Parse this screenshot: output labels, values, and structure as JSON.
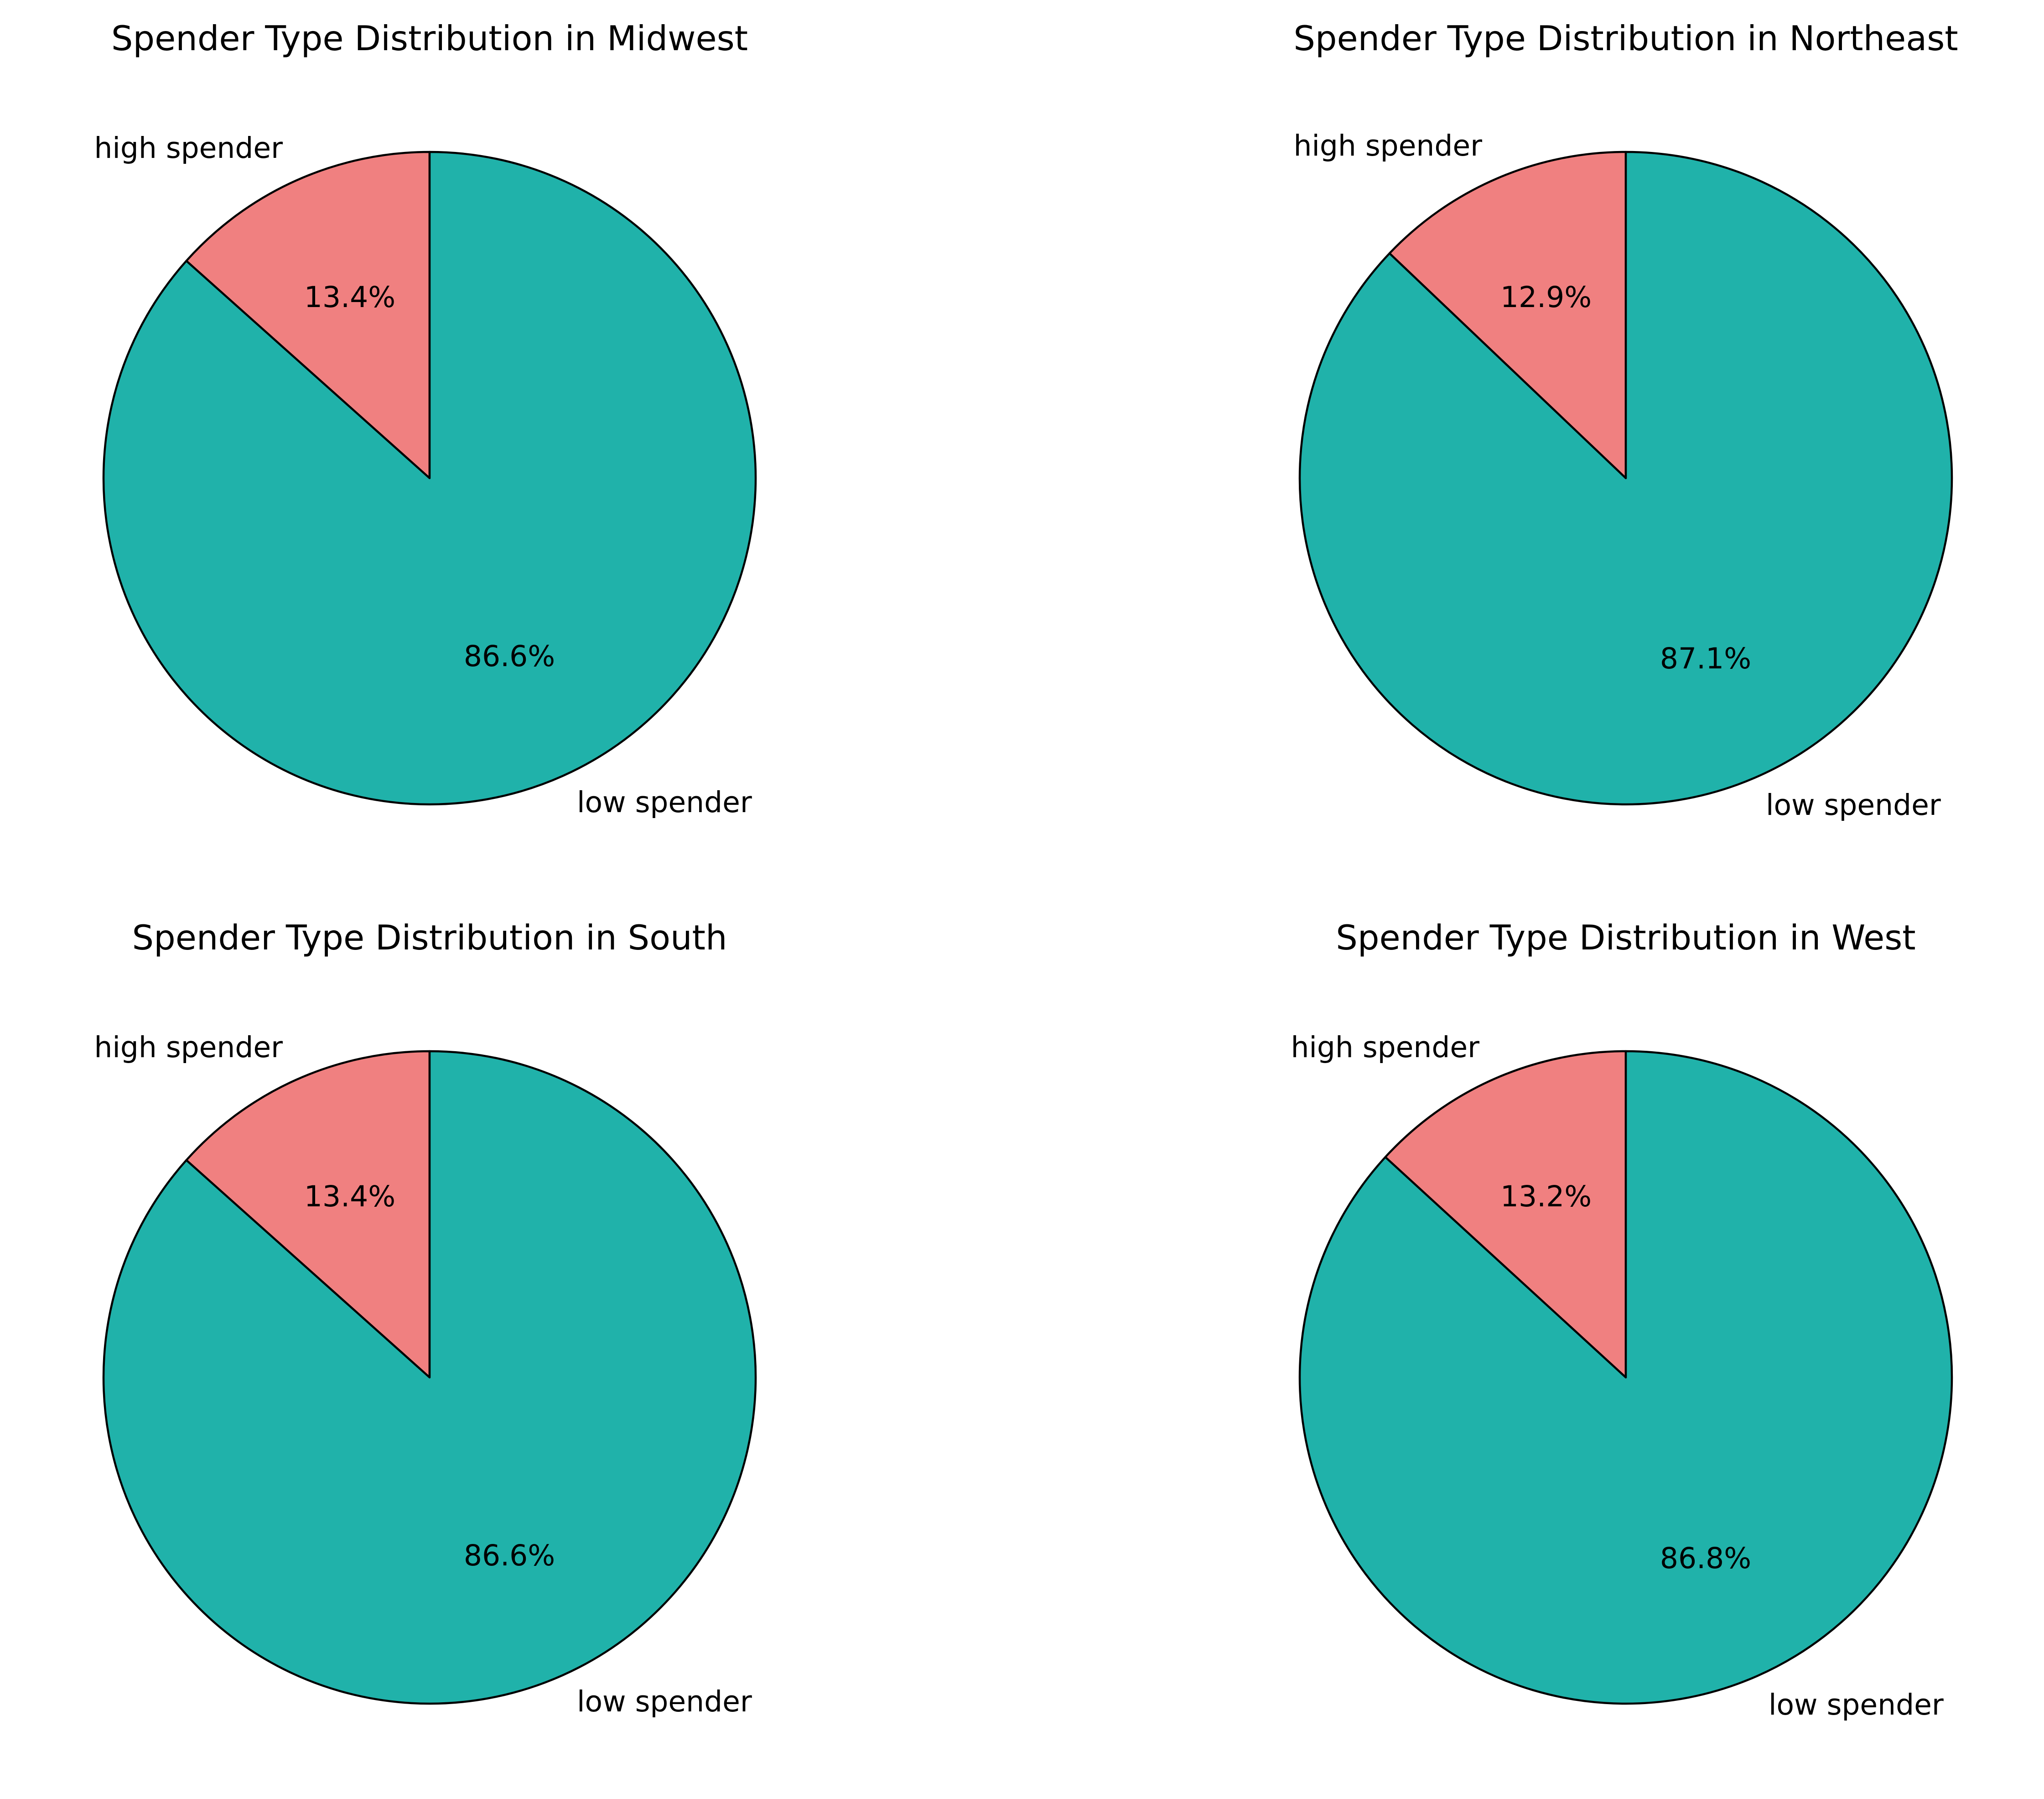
{
  "colors": {
    "high spender": "#F08080",
    "low spender": "#20B2AA",
    "edge": "#000000"
  },
  "chart_data": [
    {
      "type": "pie",
      "title": "Spender Type Distribution in Midwest",
      "categories": [
        "high spender",
        "low spender"
      ],
      "values": [
        13.4,
        86.6
      ],
      "value_labels": [
        "13.4%",
        "86.6%"
      ]
    },
    {
      "type": "pie",
      "title": "Spender Type Distribution in Northeast",
      "categories": [
        "high spender",
        "low spender"
      ],
      "values": [
        12.9,
        87.1
      ],
      "value_labels": [
        "12.9%",
        "87.1%"
      ]
    },
    {
      "type": "pie",
      "title": "Spender Type Distribution in South",
      "categories": [
        "high spender",
        "low spender"
      ],
      "values": [
        13.4,
        86.6
      ],
      "value_labels": [
        "13.4%",
        "86.6%"
      ]
    },
    {
      "type": "pie",
      "title": "Spender Type Distribution in West",
      "categories": [
        "high spender",
        "low spender"
      ],
      "values": [
        13.2,
        86.8
      ],
      "value_labels": [
        "13.2%",
        "86.8%"
      ]
    }
  ]
}
